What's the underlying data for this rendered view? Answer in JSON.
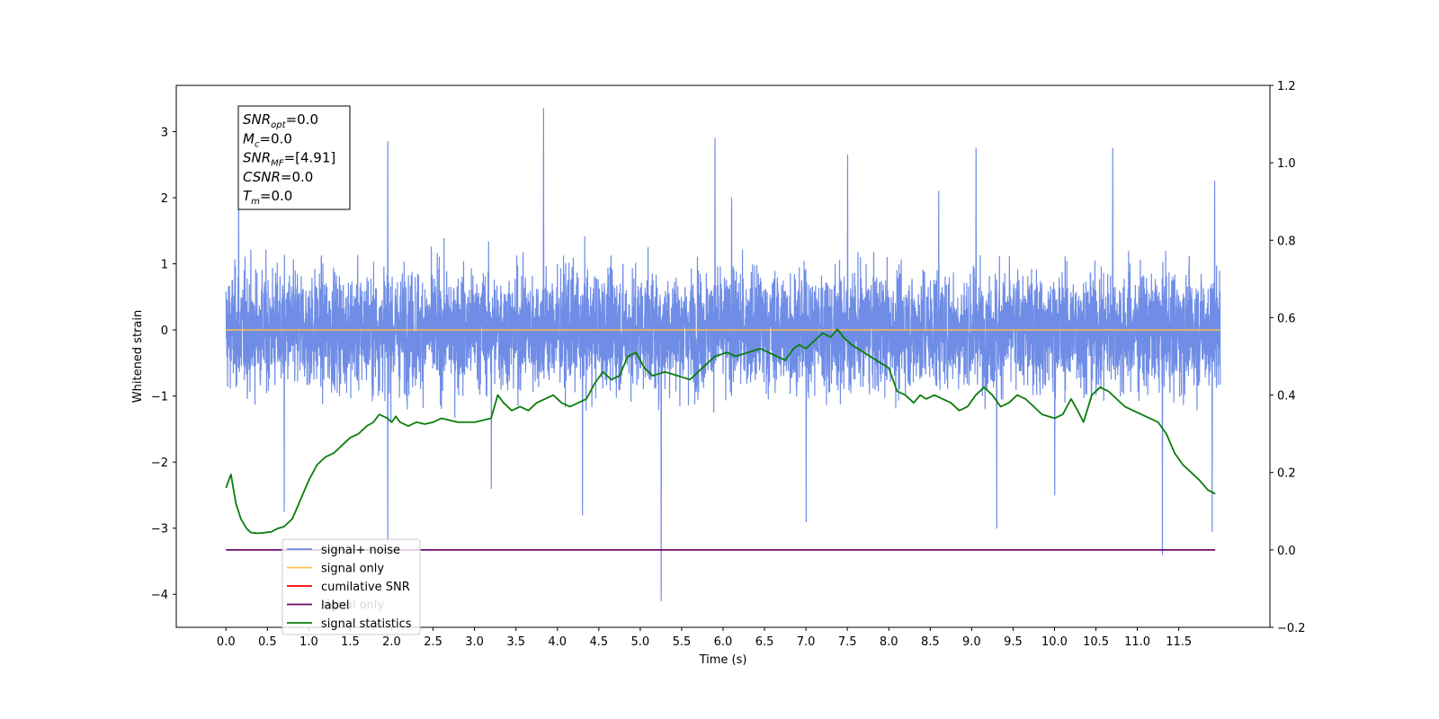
{
  "chart_data": {
    "type": "line",
    "xlabel": "Time (s)",
    "ylabel": "Whitened strain",
    "xlim": [
      -0.6,
      12.6
    ],
    "ylim": [
      -4.5,
      3.7
    ],
    "y2lim": [
      -0.2,
      1.2
    ],
    "x_ticks": [
      "0.0",
      "0.5",
      "1.0",
      "1.5",
      "2.0",
      "2.5",
      "3.0",
      "3.5",
      "4.0",
      "4.5",
      "5.0",
      "5.5",
      "6.0",
      "6.5",
      "7.0",
      "7.5",
      "8.0",
      "8.5",
      "9.0",
      "9.5",
      "10.0",
      "10.5",
      "11.0",
      "11.5"
    ],
    "y_ticks": [
      "3",
      "2",
      "1",
      "0",
      "−1",
      "−2",
      "−3",
      "−4"
    ],
    "y2_ticks": [
      "1.2",
      "1.0",
      "0.8",
      "0.6",
      "0.4",
      "0.2",
      "0.0",
      "−0.2"
    ],
    "annotation": [
      {
        "name": "SNR",
        "sub": "opt",
        "value": "=0.0"
      },
      {
        "name": "M",
        "sub": "c",
        "value": "=0.0"
      },
      {
        "name": "SNR",
        "sub": "MF",
        "value": "=[4.91]"
      },
      {
        "name": "CSNR",
        "sub": "",
        "value": "=0.0"
      },
      {
        "name": "T",
        "sub": "m",
        "value": "=0.0"
      }
    ],
    "legend": {
      "placement": "lower-left",
      "entries": [
        {
          "label": "signal+ noise",
          "color": "#6f8de6"
        },
        {
          "label": "signal only",
          "color": "#ffc04d"
        },
        {
          "label": "cumilative SNR",
          "color": "#ff0000"
        },
        {
          "label": "label",
          "color": "#6a0a6a"
        },
        {
          "label": "signal statistics",
          "color": "#0a7d0a"
        }
      ],
      "hidden_overlapped_text": "signal only"
    },
    "series": [
      {
        "name": "signal+ noise",
        "axis": "left",
        "color": "#6f8de6",
        "x_range": [
          0.0,
          12.0
        ],
        "typical_range": [
          -1.6,
          1.6
        ],
        "peaks": [
          [
            3.83,
            3.35
          ],
          [
            1.95,
            2.85
          ],
          [
            5.9,
            2.9
          ],
          [
            7.5,
            2.65
          ],
          [
            9.05,
            2.75
          ],
          [
            10.7,
            2.75
          ],
          [
            11.93,
            2.25
          ],
          [
            0.15,
            2.3
          ],
          [
            6.1,
            2.0
          ],
          [
            8.6,
            2.1
          ]
        ],
        "troughs": [
          [
            5.25,
            -4.1
          ],
          [
            11.3,
            -3.4
          ],
          [
            1.95,
            -3.2
          ],
          [
            9.3,
            -3.0
          ],
          [
            11.9,
            -3.05
          ],
          [
            7.0,
            -2.9
          ],
          [
            0.7,
            -2.75
          ],
          [
            4.3,
            -2.8
          ],
          [
            3.2,
            -2.4
          ],
          [
            10.0,
            -2.5
          ]
        ]
      },
      {
        "name": "signal only",
        "axis": "left",
        "color": "#ffc04d",
        "x": [
          0.0,
          12.0
        ],
        "y": [
          0.0,
          0.0
        ]
      },
      {
        "name": "label",
        "axis": "right",
        "color": "#6a0a6a",
        "x": [
          0.0,
          11.94
        ],
        "y": [
          0.0,
          0.0
        ]
      },
      {
        "name": "signal statistics",
        "axis": "right",
        "color": "#0a7d0a",
        "x": [
          0.0,
          0.06,
          0.12,
          0.18,
          0.25,
          0.3,
          0.38,
          0.45,
          0.55,
          0.62,
          0.7,
          0.8,
          0.9,
          1.0,
          1.1,
          1.2,
          1.3,
          1.4,
          1.5,
          1.6,
          1.7,
          1.78,
          1.85,
          1.95,
          2.0,
          2.05,
          2.1,
          2.2,
          2.3,
          2.4,
          2.5,
          2.6,
          2.7,
          2.8,
          2.9,
          3.0,
          3.1,
          3.2,
          3.28,
          3.35,
          3.45,
          3.55,
          3.65,
          3.75,
          3.85,
          3.95,
          4.05,
          4.15,
          4.25,
          4.35,
          4.45,
          4.55,
          4.65,
          4.75,
          4.85,
          4.95,
          5.05,
          5.15,
          5.3,
          5.45,
          5.6,
          5.75,
          5.9,
          6.05,
          6.15,
          6.3,
          6.45,
          6.55,
          6.65,
          6.75,
          6.85,
          6.92,
          7.0,
          7.1,
          7.2,
          7.3,
          7.38,
          7.45,
          7.55,
          7.7,
          7.85,
          8.0,
          8.1,
          8.2,
          8.3,
          8.38,
          8.45,
          8.55,
          8.65,
          8.75,
          8.85,
          8.95,
          9.05,
          9.15,
          9.25,
          9.35,
          9.45,
          9.55,
          9.65,
          9.75,
          9.85,
          10.0,
          10.1,
          10.2,
          10.28,
          10.35,
          10.45,
          10.55,
          10.65,
          10.75,
          10.85,
          10.95,
          11.05,
          11.15,
          11.25,
          11.35,
          11.45,
          11.55,
          11.65,
          11.75,
          11.85,
          11.94
        ],
        "y": [
          0.16,
          0.195,
          0.12,
          0.08,
          0.055,
          0.045,
          0.043,
          0.044,
          0.047,
          0.055,
          0.06,
          0.08,
          0.13,
          0.18,
          0.22,
          0.24,
          0.25,
          0.27,
          0.29,
          0.3,
          0.32,
          0.33,
          0.35,
          0.34,
          0.33,
          0.345,
          0.33,
          0.32,
          0.33,
          0.325,
          0.33,
          0.34,
          0.335,
          0.33,
          0.33,
          0.33,
          0.335,
          0.34,
          0.4,
          0.38,
          0.36,
          0.37,
          0.36,
          0.38,
          0.39,
          0.4,
          0.38,
          0.37,
          0.38,
          0.39,
          0.43,
          0.46,
          0.44,
          0.45,
          0.5,
          0.51,
          0.47,
          0.45,
          0.46,
          0.45,
          0.44,
          0.47,
          0.5,
          0.51,
          0.5,
          0.51,
          0.52,
          0.51,
          0.5,
          0.49,
          0.52,
          0.53,
          0.52,
          0.54,
          0.56,
          0.55,
          0.57,
          0.55,
          0.53,
          0.51,
          0.49,
          0.47,
          0.41,
          0.4,
          0.38,
          0.4,
          0.39,
          0.4,
          0.39,
          0.38,
          0.36,
          0.37,
          0.4,
          0.42,
          0.4,
          0.37,
          0.38,
          0.4,
          0.39,
          0.37,
          0.35,
          0.34,
          0.35,
          0.39,
          0.36,
          0.33,
          0.4,
          0.42,
          0.41,
          0.39,
          0.37,
          0.36,
          0.35,
          0.34,
          0.33,
          0.3,
          0.25,
          0.22,
          0.2,
          0.18,
          0.155,
          0.145
        ]
      }
    ]
  }
}
